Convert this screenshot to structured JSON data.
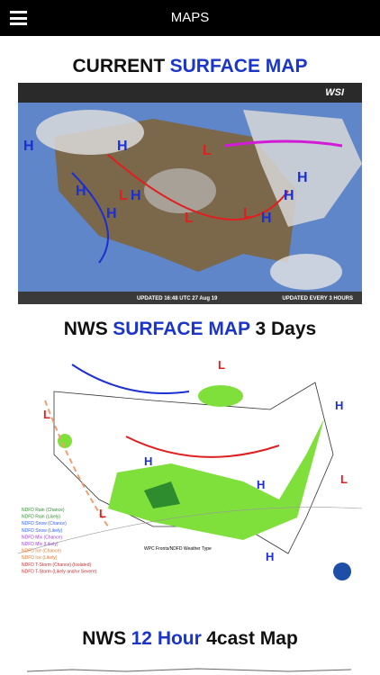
{
  "header": {
    "title": "MAPS"
  },
  "sections": [
    {
      "title": {
        "before": "CURRENT",
        "accent": "SURFACE MAP"
      },
      "map": {
        "labels": [
          "WSI",
          "UPDATED 16:48 UTC 27 Aug 19",
          "UPDATED EVERY 3 HOURS"
        ],
        "pressure_centers": [
          "H",
          "H",
          "H",
          "H",
          "H",
          "H",
          "L",
          "L",
          "L",
          "L",
          "H",
          "H"
        ]
      }
    },
    {
      "title": {
        "before": "NWS",
        "accent": "SURFACE MAP",
        "after": "3 Days"
      },
      "map": {
        "labels": [
          "WPC Fronts/NDFD Weather Type"
        ],
        "legend": [
          "NDFD Rain (Chance)",
          "NDFD Rain (Likely)",
          "NDFD Snow (Chance)",
          "NDFD Snow (Likely)",
          "NDFD Mix (Chance)",
          "NDFD Mix (Likely)",
          "NDFD Ice (Chance)",
          "NDFD Ice (Likely)",
          "NDFD T-Storm (Chance) (Isolated)",
          "NDFD T-Storm (Likely and/or Severe)"
        ],
        "pressure_centers": [
          "L",
          "L",
          "H",
          "H",
          "H",
          "L",
          "H",
          "L"
        ]
      }
    },
    {
      "title": {
        "before": "NWS",
        "accent": "12 Hour",
        "after": "4cast Map"
      }
    }
  ]
}
